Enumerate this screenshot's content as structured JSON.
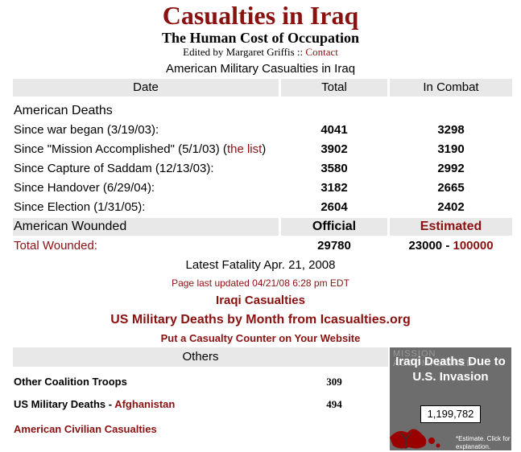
{
  "header": {
    "title": "Casualties in Iraq",
    "subtitle": "The Human Cost of Occupation",
    "editor_prefix": "Edited by Margaret Griffis :: ",
    "contact_link": "Contact"
  },
  "table": {
    "title": "American Military Casualties in Iraq",
    "col_date": "Date",
    "col_total": "Total",
    "col_combat": "In Combat",
    "deaths_heading": "American Deaths",
    "rows": [
      {
        "label": "Since war began (3/19/03):",
        "total": "4041",
        "combat": "3298"
      },
      {
        "label": "Since \"Mission Accomplished\" (5/1/03) (",
        "link": "the list",
        "suffix": ")",
        "total": "3902",
        "combat": "3190"
      },
      {
        "label": "Since Capture of Saddam (12/13/03):",
        "total": "3580",
        "combat": "2992"
      },
      {
        "label": "Since Handover (6/29/04):",
        "total": "3182",
        "combat": "2665"
      },
      {
        "label": "Since Election (1/31/05):",
        "total": "2604",
        "combat": "2402"
      }
    ],
    "wounded_heading": "American Wounded",
    "col_official": "Official",
    "col_estimated": "Estimated",
    "wounded_label": "Total Wounded:",
    "wounded_official": "29780",
    "wounded_est_low": "23000 - ",
    "wounded_est_high": "100000"
  },
  "latest_fatality": "Latest Fatality Apr. 21, 2008",
  "last_updated": "Page last updated 04/21/08 6:28 pm EDT",
  "links": {
    "iraqi_casualties": "Iraqi Casualties",
    "monthly_deaths": "US Military Deaths by Month from Icasualties.org",
    "counter_link": "Put a Casualty Counter on Your Website"
  },
  "others": {
    "heading": "Others",
    "coalition_label": "Other Coalition Troops",
    "coalition_value": "309",
    "afghan_prefix": "US Military Deaths - ",
    "afghan_link": "Afghanistan",
    "afghan_value": "494",
    "civilian_link": "American Civilian Casualties"
  },
  "counter": {
    "bg_text": "MISSION ACCOMPLISHED",
    "title": "Iraqi Deaths Due to U.S. Invasion",
    "value": "1,199,782",
    "note": "*Estimate. Click for explanation."
  },
  "colors": {
    "accent": "#8b1010",
    "header_gray": "#e8e8e8"
  }
}
